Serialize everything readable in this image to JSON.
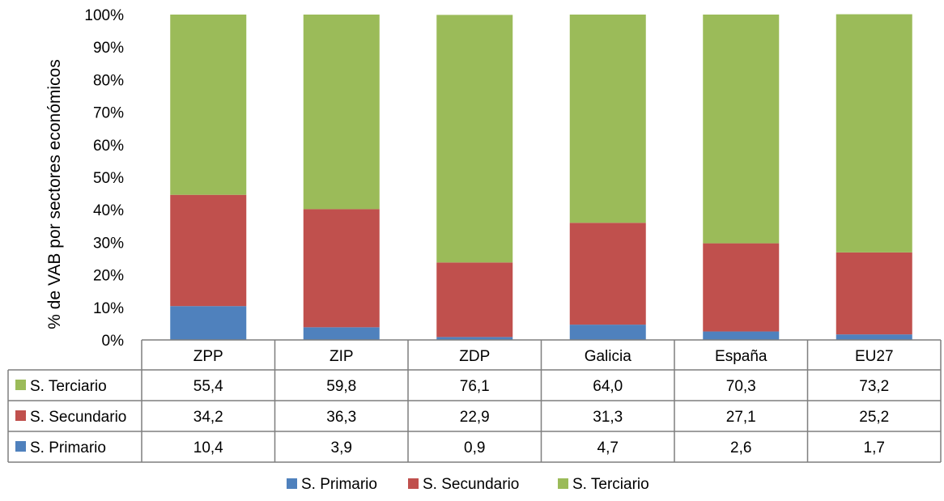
{
  "chart_data": {
    "type": "bar",
    "stacked": "percent",
    "ylabel": "% de VAB por sectores económicos",
    "ylim": [
      0,
      100
    ],
    "yticks": [
      "0%",
      "10%",
      "20%",
      "30%",
      "40%",
      "50%",
      "60%",
      "70%",
      "80%",
      "90%",
      "100%"
    ],
    "categories": [
      "ZPP",
      "ZIP",
      "ZDP",
      "Galicia",
      "España",
      "EU27"
    ],
    "series": [
      {
        "name": "S. Primario",
        "color": "#4f81bd",
        "values": [
          10.4,
          3.9,
          0.9,
          4.7,
          2.6,
          1.7
        ],
        "labels": [
          "10,4",
          "3,9",
          "0,9",
          "4,7",
          "2,6",
          "1,7"
        ]
      },
      {
        "name": "S. Secundario",
        "color": "#c0504d",
        "values": [
          34.2,
          36.3,
          22.9,
          31.3,
          27.1,
          25.2
        ],
        "labels": [
          "34,2",
          "36,3",
          "22,9",
          "31,3",
          "27,1",
          "25,2"
        ]
      },
      {
        "name": "S. Terciario",
        "color": "#9bbb59",
        "values": [
          55.4,
          59.8,
          76.1,
          64.0,
          70.3,
          73.2
        ],
        "labels": [
          "55,4",
          "59,8",
          "76,1",
          "64,0",
          "70,3",
          "73,2"
        ]
      }
    ],
    "table_row_order": [
      "S. Terciario",
      "S. Secundario",
      "S. Primario"
    ],
    "legend_position": "bottom",
    "grid": false
  }
}
